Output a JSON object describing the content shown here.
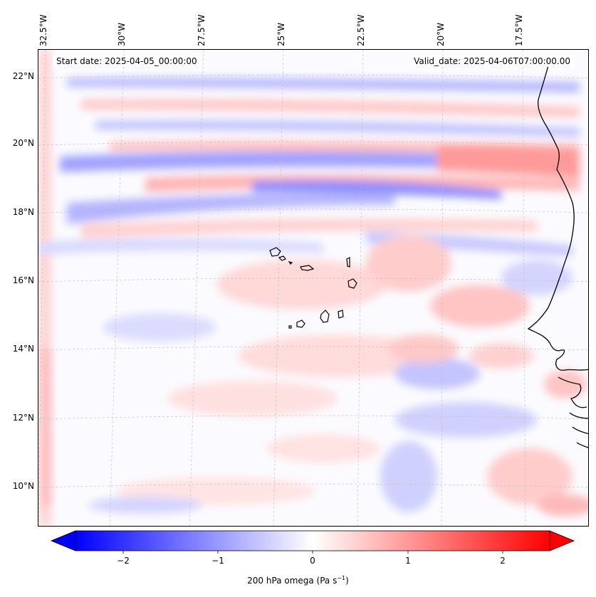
{
  "map": {
    "start_date_text": "Start date: 2025-04-05_00:00:00",
    "valid_date_text": "Valid_date: 2025-04-06T07:00:00.00",
    "lon_labels": [
      "32.5°W",
      "30°W",
      "27.5°W",
      "25°W",
      "22.5°W",
      "20°W",
      "17.5°W"
    ],
    "lat_labels": [
      "22°N",
      "20°N",
      "18°N",
      "16°N",
      "14°N",
      "12°N",
      "10°N"
    ],
    "lon_range": [
      -33.0,
      -15.5
    ],
    "lat_range": [
      8.9,
      22.8
    ],
    "field": "200 hPa omega",
    "colors": {
      "negative": "#0000ff",
      "positive": "#ff0000",
      "neutral": "#ffffff",
      "coast": "#000000",
      "grid": "#bbbbbb"
    }
  },
  "colorbar": {
    "ticks": [
      "−2",
      "−1",
      "0",
      "1",
      "2"
    ],
    "tick_values": [
      -2,
      -1,
      0,
      1,
      2
    ],
    "range": [
      -2.5,
      2.5
    ],
    "label_main": "200 hPa omega (Pa s",
    "label_exp": "−1",
    "label_end": ")"
  }
}
